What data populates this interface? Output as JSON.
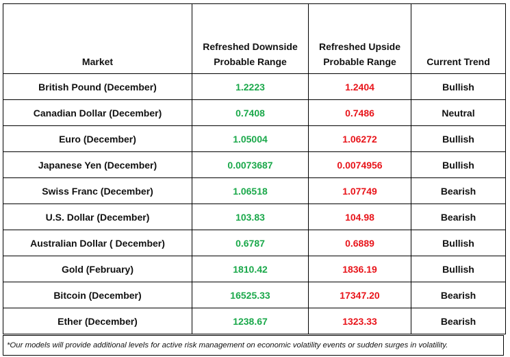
{
  "headers": {
    "market": "Market",
    "downside_line1": "Refreshed Downside",
    "downside_line2": "Probable Range",
    "upside_line1": "Refreshed Upside",
    "upside_line2": "Probable Range",
    "trend": "Current Trend"
  },
  "colors": {
    "downside": "#1aa84a",
    "upside": "#e8141a"
  },
  "rows": [
    {
      "market": "British Pound (December)",
      "downside": "1.2223",
      "upside": "1.2404",
      "trend": "Bullish"
    },
    {
      "market": "Canadian Dollar (December)",
      "downside": "0.7408",
      "upside": "0.7486",
      "trend": "Neutral"
    },
    {
      "market": "Euro (December)",
      "downside": "1.05004",
      "upside": "1.06272",
      "trend": "Bullish"
    },
    {
      "market": "Japanese Yen (December)",
      "downside": "0.0073687",
      "upside": "0.0074956",
      "trend": "Bullish"
    },
    {
      "market": "Swiss Franc (December)",
      "downside": "1.06518",
      "upside": "1.07749",
      "trend": "Bearish"
    },
    {
      "market": "U.S. Dollar (December)",
      "downside": "103.83",
      "upside": "104.98",
      "trend": "Bearish"
    },
    {
      "market": "Australian Dollar ( December)",
      "downside": "0.6787",
      "upside": "0.6889",
      "trend": "Bullish"
    },
    {
      "market": "Gold (February)",
      "downside": "1810.42",
      "upside": "1836.19",
      "trend": "Bullish"
    },
    {
      "market": "Bitcoin (December)",
      "downside": "16525.33",
      "upside": "17347.20",
      "trend": "Bearish"
    },
    {
      "market": "Ether (December)",
      "downside": "1238.67",
      "upside": "1323.33",
      "trend": "Bearish"
    }
  ],
  "footnote": "*Our models will provide additional levels for active risk management on economic volatility events or sudden surges in volatility."
}
